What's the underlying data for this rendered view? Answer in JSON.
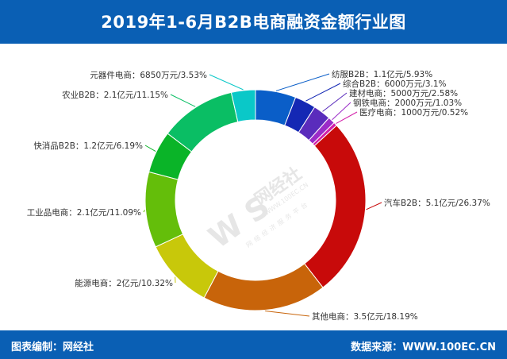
{
  "header": {
    "title": "2019年1-6月B2B电商融资金额行业图"
  },
  "footer": {
    "left_text": "图表编制：网经社",
    "right_text": "数据来源：WWW.100EC.CN"
  },
  "watermark": {
    "logo_text": "W S",
    "brand": "网经社",
    "url": "WWW.100EC.CN",
    "slogan": "网络经济服务平台"
  },
  "chart_data": {
    "type": "pie",
    "style": "donut",
    "title": "2019年1-6月B2B电商融资金额行业图",
    "segments": [
      {
        "name": "纺服B2B",
        "amount": "1.1亿元",
        "percent": 5.93,
        "label": "纺服B2B：1.1亿元/5.93%",
        "color": "#0a5ec8"
      },
      {
        "name": "综合B2B",
        "amount": "6000万元",
        "percent": 3.1,
        "label": "综合B2B：6000万元/3.1%",
        "color": "#1428b4"
      },
      {
        "name": "建材电商",
        "amount": "5000万元",
        "percent": 2.58,
        "label": "建材电商：5000万元/2.58%",
        "color": "#5a2cbc"
      },
      {
        "name": "钢铁电商",
        "amount": "2000万元",
        "percent": 1.03,
        "label": "钢铁电商：2000万元/1.03%",
        "color": "#9b2cc8"
      },
      {
        "name": "医疗电商",
        "amount": "1000万元",
        "percent": 0.52,
        "label": "医疗电商：1000万元/0.52%",
        "color": "#d21ea8"
      },
      {
        "name": "汽车B2B",
        "amount": "5.1亿元",
        "percent": 26.37,
        "label": "汽车B2B：5.1亿元/26.37%",
        "color": "#c80a0a"
      },
      {
        "name": "其他电商",
        "amount": "3.5亿元",
        "percent": 18.19,
        "label": "其他电商：3.5亿元/18.19%",
        "color": "#c8640a"
      },
      {
        "name": "能源电商",
        "amount": "2亿元",
        "percent": 10.32,
        "label": "能源电商：2亿元/10.32%",
        "color": "#c8c80a"
      },
      {
        "name": "工业品电商",
        "amount": "2.1亿元",
        "percent": 11.09,
        "label": "工业品电商：2.1亿元/11.09%",
        "color": "#64be0a"
      },
      {
        "name": "快消品B2B",
        "amount": "1.2亿元",
        "percent": 6.19,
        "label": "快消品B2B：1.2亿元/6.19%",
        "color": "#0ab428"
      },
      {
        "name": "农业B2B",
        "amount": "2.1亿元",
        "percent": 11.15,
        "label": "农业B2B：2.1亿元/11.15%",
        "color": "#0abe64"
      },
      {
        "name": "元器件电商",
        "amount": "6850万元",
        "percent": 3.53,
        "label": "元器件电商：6850万元/3.53%",
        "color": "#0ac8c8"
      }
    ]
  }
}
